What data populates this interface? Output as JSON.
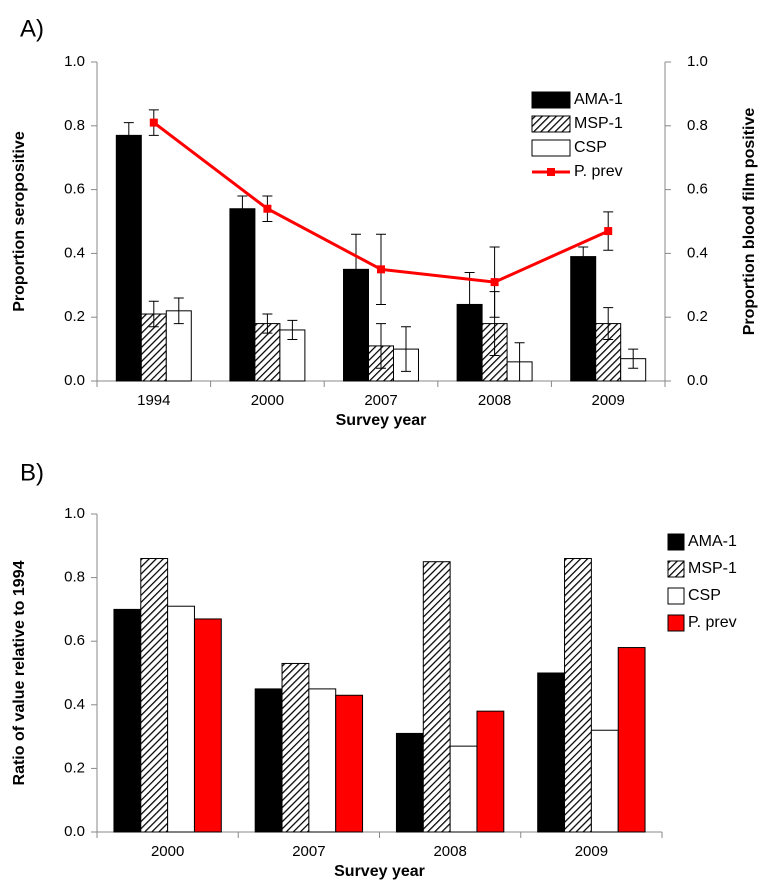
{
  "chart_data": [
    {
      "type": "bar",
      "label": "A)",
      "x_label": "Survey year",
      "y_label": "Proportion seropositive",
      "y2_label": "Proportion blood film positive",
      "categories": [
        "1994",
        "2000",
        "2007",
        "2008",
        "2009"
      ],
      "series": [
        {
          "name": "AMA-1",
          "color": "#000000",
          "values": [
            0.77,
            0.54,
            0.35,
            0.24,
            0.39
          ],
          "errors": [
            0.04,
            0.04,
            0.11,
            0.1,
            0.03
          ]
        },
        {
          "name": "MSP-1",
          "color": "#000000",
          "hatch": true,
          "values": [
            0.21,
            0.18,
            0.11,
            0.18,
            0.18
          ],
          "errors": [
            0.04,
            0.03,
            0.07,
            0.1,
            0.05
          ]
        },
        {
          "name": "CSP",
          "color": "#ffffff",
          "values": [
            0.22,
            0.16,
            0.1,
            0.06,
            0.07
          ],
          "errors": [
            0.04,
            0.03,
            0.07,
            0.06,
            0.03
          ]
        },
        {
          "name": "P. prev",
          "type": "line",
          "axis": "y2",
          "color": "#ff0000",
          "values": [
            0.81,
            0.54,
            0.35,
            0.31,
            0.47
          ],
          "errors": [
            0.04,
            0.04,
            0.11,
            0.11,
            0.06
          ]
        }
      ],
      "ylim": [
        0,
        1
      ],
      "yticks": [
        {
          "value": 0,
          "label": "0.0"
        },
        0.2,
        0.4,
        0.6,
        0.8,
        {
          "value": 1,
          "label": "1.0"
        }
      ],
      "y2lim": [
        0,
        1
      ],
      "y2ticks": [
        {
          "value": 0,
          "label": "0.0"
        },
        0.2,
        0.4,
        0.6,
        0.8,
        {
          "value": 1,
          "label": "1.0"
        }
      ],
      "grid": false,
      "legend": "upper right"
    },
    {
      "type": "bar",
      "label": "B)",
      "x_label": "Survey year",
      "y_label": "Ratio of value relative to 1994",
      "categories": [
        "2000",
        "2007",
        "2008",
        "2009"
      ],
      "series": [
        {
          "name": "AMA-1",
          "color": "#000000",
          "values": [
            0.7,
            0.45,
            0.31,
            0.5
          ]
        },
        {
          "name": "MSP-1",
          "color": "#000000",
          "hatch": true,
          "values": [
            0.86,
            0.53,
            0.85,
            0.86
          ]
        },
        {
          "name": "CSP",
          "color": "#ffffff",
          "values": [
            0.71,
            0.45,
            0.27,
            0.32
          ]
        },
        {
          "name": "P. prev",
          "color": "#ff0000",
          "values": [
            0.67,
            0.43,
            0.38,
            0.58
          ]
        }
      ],
      "ylim": [
        0,
        1
      ],
      "yticks": [
        {
          "value": 0,
          "label": "0.0"
        },
        0.2,
        0.4,
        0.6,
        0.8,
        {
          "value": 1,
          "label": "1.0"
        }
      ],
      "grid": false,
      "legend": "right"
    }
  ]
}
